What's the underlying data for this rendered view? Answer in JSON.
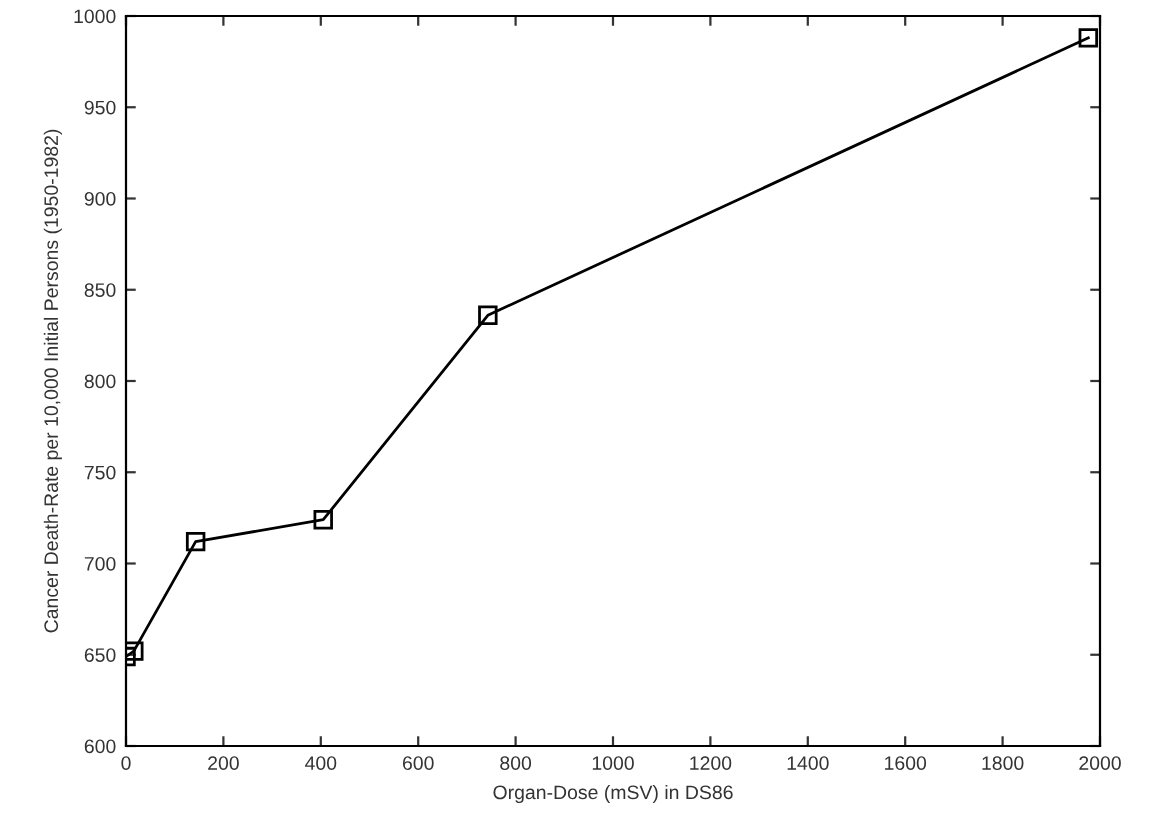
{
  "chart_data": {
    "type": "line",
    "xlabel": "Organ-Dose (mSV) in DS86",
    "ylabel": "Cancer Death-Rate per 10,000 Initial Persons (1950-1982)",
    "x": [
      0,
      16,
      143,
      405,
      743,
      1976
    ],
    "series": [
      {
        "color": "#000000",
        "values": [
          649,
          652,
          712,
          724,
          836,
          988
        ]
      }
    ],
    "xlim": [
      0,
      2000
    ],
    "xticks": [
      0,
      200,
      400,
      600,
      800,
      1000,
      1200,
      1400,
      1600,
      1800,
      2000
    ],
    "ylim": [
      600,
      1000
    ],
    "yticks": [
      600,
      650,
      700,
      750,
      800,
      850,
      900,
      950,
      1000
    ],
    "marker": "square",
    "line_style": "solid",
    "grid": false,
    "legend": false
  }
}
